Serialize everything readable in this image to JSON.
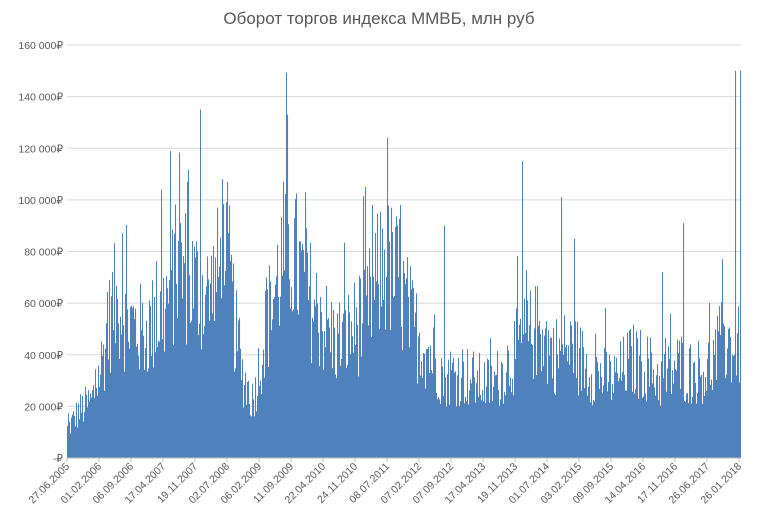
{
  "chart_data": {
    "type": "bar",
    "title": "Оборот торгов индекса ММВБ, млн руб",
    "xlabel": "",
    "ylabel": "",
    "ylim": [
      0,
      160000
    ],
    "grid": true,
    "legend": "none",
    "bar_color": "#4f81bd",
    "ytick_values": [
      0,
      20000,
      40000,
      60000,
      80000,
      100000,
      120000,
      140000,
      160000
    ],
    "ytick_labels": [
      "-₽",
      "20 000₽",
      "40 000₽",
      "60 000₽",
      "80 000₽",
      "100 000₽",
      "120 000₽",
      "140 000₽",
      "160 000₽"
    ],
    "xtick_labels": [
      "27.06.2005",
      "01.02.2006",
      "06.09.2006",
      "17.04.2007",
      "19.11.2007",
      "02.07.2008",
      "06.02.2009",
      "11.09.2009",
      "22.04.2010",
      "24.11.2010",
      "08.07.2011",
      "07.02.2012",
      "07.09.2012",
      "17.04.2013",
      "19.11.2013",
      "01.07.2014",
      "03.02.2015",
      "09.09.2015",
      "14.04.2016",
      "17.11.2016",
      "26.06.2017",
      "26.01.2018"
    ],
    "series_profile": {
      "name": "",
      "x": [
        "2005-06",
        "2005-09",
        "2005-12",
        "2006-02",
        "2006-05",
        "2006-09",
        "2006-12",
        "2007-04",
        "2007-08",
        "2007-11",
        "2008-03",
        "2008-07",
        "2008-10",
        "2009-01",
        "2009-04",
        "2009-09",
        "2009-12",
        "2010-04",
        "2010-08",
        "2010-11",
        "2011-03",
        "2011-07",
        "2011-10",
        "2012-02",
        "2012-06",
        "2012-09",
        "2013-01",
        "2013-04",
        "2013-08",
        "2013-11",
        "2014-03",
        "2014-07",
        "2014-10",
        "2015-02",
        "2015-06",
        "2015-09",
        "2015-12",
        "2016-04",
        "2016-08",
        "2016-11",
        "2017-03",
        "2017-06",
        "2017-10",
        "2018-01",
        "2018-05"
      ],
      "values": [
        10000,
        18000,
        22000,
        35000,
        60000,
        52000,
        48000,
        55000,
        75000,
        68000,
        62000,
        80000,
        35000,
        22000,
        50000,
        85000,
        70000,
        55000,
        45000,
        48000,
        55000,
        75000,
        70000,
        50000,
        40000,
        32000,
        33000,
        30000,
        28000,
        35000,
        45000,
        50000,
        40000,
        42000,
        35000,
        32000,
        30000,
        38000,
        35000,
        30000,
        36000,
        33000,
        35000,
        45000,
        42000
      ],
      "peaks": [
        {
          "x": "2006-07",
          "value": 87000
        },
        {
          "x": "2007-04",
          "value": 104000
        },
        {
          "x": "2007-10",
          "value": 107000
        },
        {
          "x": "2008-01",
          "value": 135000
        },
        {
          "x": "2008-06",
          "value": 108000
        },
        {
          "x": "2009-09",
          "value": 133000
        },
        {
          "x": "2010-01",
          "value": 103000
        },
        {
          "x": "2011-03",
          "value": 105000
        },
        {
          "x": "2011-08",
          "value": 124000
        },
        {
          "x": "2011-11",
          "value": 98000
        },
        {
          "x": "2012-09",
          "value": 90000
        },
        {
          "x": "2014-03",
          "value": 115000
        },
        {
          "x": "2014-12",
          "value": 101000
        },
        {
          "x": "2015-03",
          "value": 85000
        },
        {
          "x": "2016-11",
          "value": 72000
        },
        {
          "x": "2017-04",
          "value": 91000
        },
        {
          "x": "2018-01",
          "value": 77000
        },
        {
          "x": "2018-04",
          "value": 150000
        }
      ]
    }
  }
}
